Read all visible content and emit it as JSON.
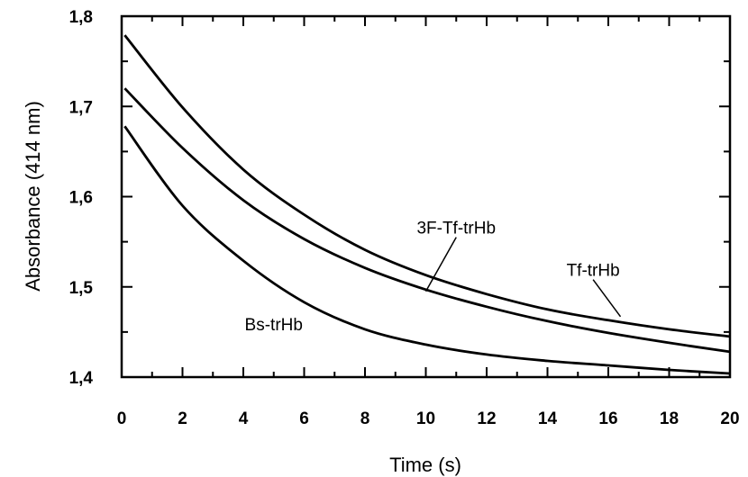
{
  "chart_data": {
    "type": "line",
    "title": "",
    "xlabel": "Time (s)",
    "ylabel": "Absorbance (414 nm)",
    "xlim": [
      0,
      20
    ],
    "ylim": [
      1.4,
      1.8
    ],
    "x_ticks": [
      "0",
      "2",
      "4",
      "6",
      "8",
      "10",
      "12",
      "14",
      "16",
      "18",
      "20"
    ],
    "y_ticks": [
      "1,4",
      "1,5",
      "1,6",
      "1,7",
      "1,8"
    ],
    "grid": false,
    "legend": "none",
    "line_color": "#000000",
    "series": [
      {
        "name": "Tf-trHb",
        "x": [
          0.1,
          2,
          4,
          6,
          8,
          10,
          12,
          14,
          16,
          18,
          20
        ],
        "y": [
          1.779,
          1.699,
          1.63,
          1.58,
          1.541,
          1.513,
          1.492,
          1.475,
          1.463,
          1.453,
          1.445
        ],
        "label_at": [
          16.4,
          1.467
        ]
      },
      {
        "name": "3F-Tf-trHb",
        "x": [
          0.1,
          2,
          4,
          6,
          8,
          10,
          12,
          14,
          16,
          18,
          20
        ],
        "y": [
          1.72,
          1.654,
          1.596,
          1.553,
          1.521,
          1.497,
          1.478,
          1.462,
          1.449,
          1.438,
          1.428
        ],
        "label_at": [
          10.0,
          1.495
        ]
      },
      {
        "name": "Bs-trHb",
        "x": [
          0.1,
          2,
          4,
          6,
          8,
          10,
          12,
          14,
          16,
          18,
          20
        ],
        "y": [
          1.678,
          1.59,
          1.529,
          1.483,
          1.453,
          1.436,
          1.425,
          1.418,
          1.413,
          1.408,
          1.404
        ],
        "label_at": null
      }
    ],
    "annotations": [
      {
        "text": "Tf-trHb",
        "x": 15.5,
        "y": 1.512
      },
      {
        "text": "3F-Tf-trHb",
        "x": 11.0,
        "y": 1.559
      },
      {
        "text": "Bs-trHb",
        "x": 5.0,
        "y": 1.452
      }
    ]
  }
}
